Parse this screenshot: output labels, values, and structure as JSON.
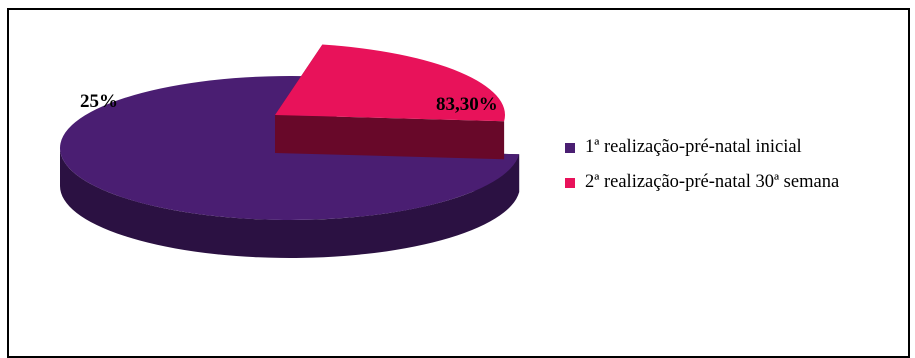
{
  "chart_data": {
    "type": "pie",
    "style": "3d-exploded",
    "title": "",
    "slices": [
      {
        "name": "1ª realização-pré-natal inicial",
        "value": 83.3,
        "label": "83,30%",
        "color": "#4a1e72"
      },
      {
        "name": "2ª realização-pré-natal 30ª semana",
        "value": 25,
        "label": "25%",
        "color": "#e8125a"
      }
    ],
    "legend_position": "right"
  }
}
